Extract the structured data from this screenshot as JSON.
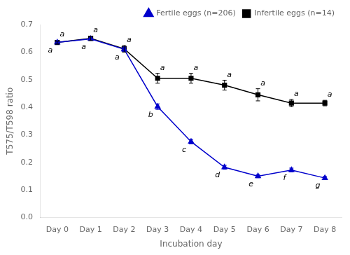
{
  "chart_data": {
    "type": "line",
    "xlabel": "Incubation day",
    "ylabel": "T575/T598 ratio",
    "categories": [
      "Day 0",
      "Day 1",
      "Day 2",
      "Day 3",
      "Day 4",
      "Day 5",
      "Day 6",
      "Day 7",
      "Day 8"
    ],
    "series": [
      {
        "name": "Fertile eggs (n=206)",
        "color": "#0000cc",
        "marker": "triangle",
        "values": [
          0.635,
          0.648,
          0.61,
          0.402,
          0.275,
          0.182,
          0.15,
          0.172,
          0.143
        ],
        "error": [
          0.003,
          0.003,
          0.008,
          0.01,
          0.008,
          0.007,
          0.006,
          0.007,
          0.006
        ],
        "annotations": [
          "a",
          "a",
          "a",
          "b",
          "c",
          "d",
          "e",
          "f",
          "g"
        ]
      },
      {
        "name": "Infertile eggs (n=14)",
        "color": "#000000",
        "marker": "square",
        "values": [
          0.635,
          0.65,
          0.612,
          0.505,
          0.505,
          0.48,
          0.445,
          0.415,
          0.415
        ],
        "error": [
          0.004,
          0.008,
          0.012,
          0.018,
          0.018,
          0.018,
          0.022,
          0.013,
          0.01
        ],
        "annotations": [
          "a",
          "a",
          "a",
          "a",
          "a",
          "a",
          "a",
          "a",
          "a"
        ]
      }
    ],
    "ylim": [
      0.0,
      0.7
    ],
    "yticks": [
      {
        "value": 0.0,
        "label": "0.0"
      },
      0.1,
      0.2,
      0.3,
      0.4,
      0.5,
      0.6,
      0.7
    ],
    "grid": false,
    "legend": "upper right"
  }
}
